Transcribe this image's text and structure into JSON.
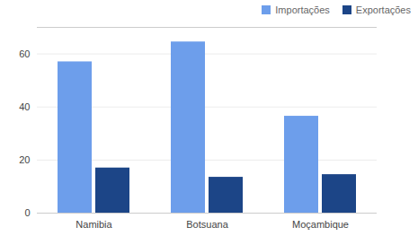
{
  "chart_data": {
    "type": "bar",
    "categories": [
      "Namibia",
      "Botsuana",
      "Moçambique"
    ],
    "series": [
      {
        "name": "Importações",
        "color": "#6d9eeb",
        "values": [
          57,
          64.5,
          36.5
        ]
      },
      {
        "name": "Exportações",
        "color": "#1c4587",
        "values": [
          17,
          13.5,
          14.5
        ]
      }
    ],
    "ylim": [
      0,
      70
    ],
    "yticks": [
      0,
      20,
      40,
      60
    ],
    "grid": true,
    "legend": "top-right"
  }
}
